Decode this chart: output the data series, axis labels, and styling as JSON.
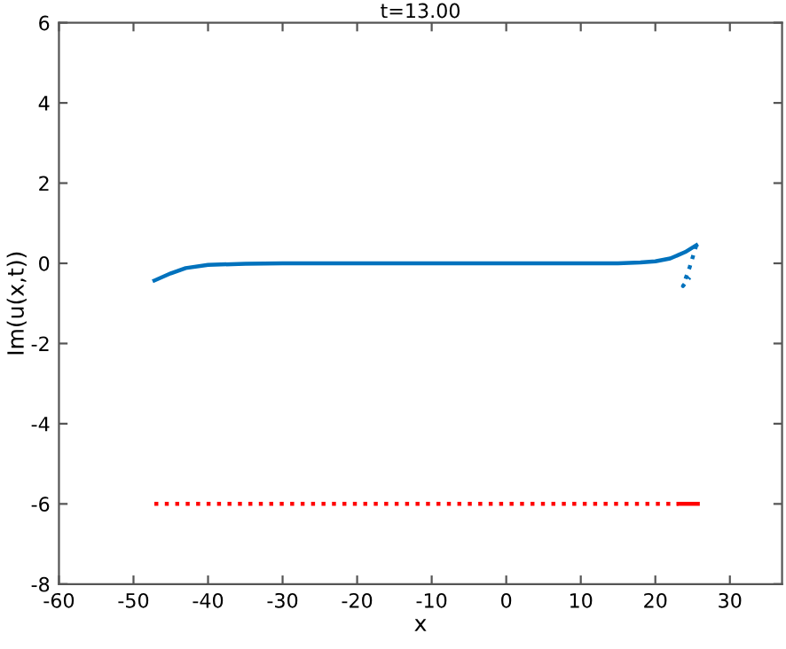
{
  "chart_data": {
    "type": "line",
    "title": "t=13.00",
    "xlabel": "x",
    "ylabel": "Im(u(x,t))",
    "xlim": [
      -60,
      37
    ],
    "ylim": [
      -8,
      6
    ],
    "xticks": [
      -60,
      -50,
      -40,
      -30,
      -20,
      -10,
      0,
      10,
      20,
      30
    ],
    "yticks": [
      -8,
      -6,
      -4,
      -2,
      0,
      2,
      4,
      6
    ],
    "grid": false,
    "legend": false,
    "series": [
      {
        "color": "#0072bd",
        "line_style": "solid",
        "x": [
          -47.2,
          -45,
          -43,
          -40,
          -35,
          -30,
          0,
          15,
          18,
          20,
          22,
          24,
          25.5
        ],
        "values": [
          -0.43,
          -0.25,
          -0.12,
          -0.04,
          -0.01,
          0,
          0,
          0,
          0.02,
          0.05,
          0.12,
          0.28,
          0.45
        ]
      },
      {
        "color": "#0072bd",
        "line_style": "dotted",
        "x": [
          25.5,
          24.6,
          23.7,
          24.6
        ],
        "values": [
          0.45,
          -0.1,
          -0.57,
          -0.35
        ]
      },
      {
        "color": "#ff0000",
        "line_style": "dotted",
        "x": [
          -47.2,
          23.1
        ],
        "values": [
          -6,
          -6
        ]
      },
      {
        "color": "#ff0000",
        "line_style": "solid",
        "x": [
          23.1,
          25.7
        ],
        "values": [
          -6,
          -6
        ]
      }
    ]
  }
}
